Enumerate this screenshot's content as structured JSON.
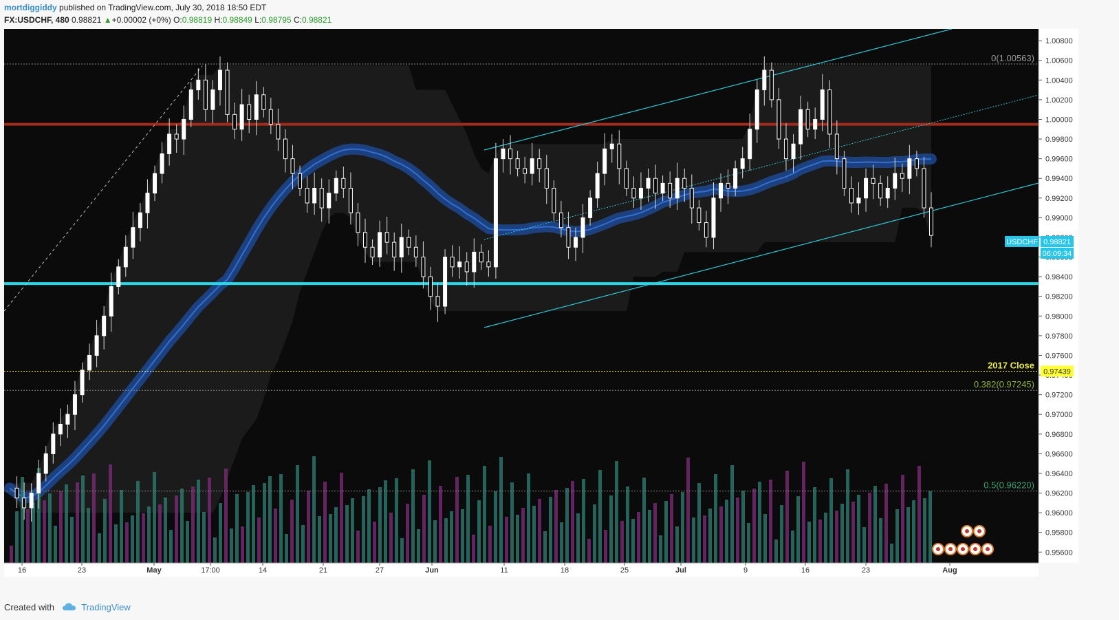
{
  "header": {
    "author": "mortdiggiddy",
    "published": "published on TradingView.com, July 30, 2018 18:50 EDT",
    "symbol": "FX:USDCHF, 480",
    "last": "0.98821",
    "change_arrow": "▲",
    "change": "+0.00002 (+0%)",
    "o_label": "O:",
    "o_value": "0.98819",
    "h_label": "H:",
    "h_value": "0.98849",
    "l_label": "L:",
    "l_value": "0.98795",
    "c_label": "C:",
    "c_value": "0.98821"
  },
  "footer": {
    "created_with": "Created with",
    "brand": "TradingView",
    "icon": "tradingview-cloud-icon"
  },
  "colors": {
    "background": "#0b0b0b",
    "candle_up": "#ffffff",
    "candle_down": "#ffffff",
    "resistance": "#a52a1a",
    "support": "#27d8e8",
    "channel": "#2ec7d6",
    "band": "#1d4fa0",
    "cloud": "#2a2a2a",
    "volume_a": "#2a7a6e",
    "volume_b": "#7a2a78",
    "close_line": "#e8e84a",
    "fib_0382": "#8db33a",
    "fib_05": "#3aa06a"
  },
  "chart_data": {
    "type": "candlestick",
    "symbol": "USDCHF",
    "interval": "480",
    "x_ticks": [
      "16",
      "23",
      "May",
      "17:00",
      "14",
      "21",
      "27",
      "Jun",
      "11",
      "18",
      "25",
      "Jul",
      "9",
      "16",
      "23",
      "Aug"
    ],
    "y_ticks": [
      "1.00800",
      "1.00600",
      "1.00400",
      "1.00200",
      "1.00000",
      "0.99800",
      "0.99600",
      "0.99400",
      "0.99200",
      "0.99000",
      "0.98800",
      "0.98600",
      "0.98400",
      "0.98200",
      "0.98000",
      "0.97800",
      "0.97600",
      "0.97400",
      "0.97200",
      "0.97000",
      "0.96800",
      "0.96600",
      "0.96400",
      "0.96200",
      "0.96000",
      "0.95800",
      "0.95600"
    ],
    "ylim": [
      0.9549,
      1.0092
    ],
    "price_label": "USDCHF",
    "price_value": "0.98821",
    "countdown": "06:09:34",
    "levels": [
      {
        "name": "fib-0",
        "label": "0(1.00563)",
        "value": 1.00563
      },
      {
        "name": "resistance",
        "label": "",
        "value": 0.9995
      },
      {
        "name": "support",
        "label": "",
        "value": 0.9833
      },
      {
        "name": "2017-close",
        "label": "2017 Close",
        "value": 0.97439,
        "badge": "0.97439"
      },
      {
        "name": "fib-0382",
        "label": "0.382(0.97245)",
        "value": 0.97245
      },
      {
        "name": "fib-05",
        "label": "0.5(0.96220)",
        "value": 0.9622
      }
    ],
    "ohlc_close_path": [
      [
        0,
        0.9625
      ],
      [
        1,
        0.9615
      ],
      [
        2,
        0.9605
      ],
      [
        3,
        0.962
      ],
      [
        4,
        0.964
      ],
      [
        5,
        0.966
      ],
      [
        6,
        0.968
      ],
      [
        7,
        0.969
      ],
      [
        8,
        0.97
      ],
      [
        9,
        0.972
      ],
      [
        10,
        0.9745
      ],
      [
        11,
        0.976
      ],
      [
        12,
        0.978
      ],
      [
        13,
        0.98
      ],
      [
        14,
        0.983
      ],
      [
        15,
        0.985
      ],
      [
        16,
        0.987
      ],
      [
        17,
        0.989
      ],
      [
        18,
        0.9905
      ],
      [
        19,
        0.9925
      ],
      [
        20,
        0.9945
      ],
      [
        21,
        0.9965
      ],
      [
        22,
        0.9985
      ],
      [
        23,
        0.998
      ],
      [
        24,
        1.0
      ],
      [
        25,
        1.003
      ],
      [
        26,
        1.004
      ],
      [
        27,
        1.001
      ],
      [
        28,
        1.003
      ],
      [
        29,
        1.005
      ],
      [
        30,
        1.0005
      ],
      [
        31,
        0.999
      ],
      [
        32,
        1.0015
      ],
      [
        33,
        1.0
      ],
      [
        34,
        1.0025
      ],
      [
        35,
        1.001
      ],
      [
        36,
        0.9995
      ],
      [
        37,
        0.998
      ],
      [
        38,
        0.996
      ],
      [
        39,
        0.9945
      ],
      [
        40,
        0.993
      ],
      [
        41,
        0.9915
      ],
      [
        42,
        0.993
      ],
      [
        43,
        0.991
      ],
      [
        44,
        0.9925
      ],
      [
        45,
        0.994
      ],
      [
        46,
        0.993
      ],
      [
        47,
        0.9905
      ],
      [
        48,
        0.9885
      ],
      [
        49,
        0.987
      ],
      [
        50,
        0.986
      ],
      [
        51,
        0.9885
      ],
      [
        52,
        0.9875
      ],
      [
        53,
        0.986
      ],
      [
        54,
        0.988
      ],
      [
        55,
        0.987
      ],
      [
        56,
        0.986
      ],
      [
        57,
        0.984
      ],
      [
        58,
        0.982
      ],
      [
        59,
        0.981
      ],
      [
        60,
        0.986
      ],
      [
        61,
        0.985
      ],
      [
        62,
        0.9855
      ],
      [
        63,
        0.9845
      ],
      [
        64,
        0.9865
      ],
      [
        65,
        0.9855
      ],
      [
        66,
        0.985
      ],
      [
        67,
        0.996
      ],
      [
        68,
        0.997
      ],
      [
        69,
        0.996
      ],
      [
        70,
        0.995
      ],
      [
        71,
        0.9945
      ],
      [
        72,
        0.996
      ],
      [
        73,
        0.995
      ],
      [
        74,
        0.993
      ],
      [
        75,
        0.9905
      ],
      [
        76,
        0.989
      ],
      [
        77,
        0.987
      ],
      [
        78,
        0.988
      ],
      [
        79,
        0.99
      ],
      [
        80,
        0.992
      ],
      [
        81,
        0.9945
      ],
      [
        82,
        0.997
      ],
      [
        83,
        0.9975
      ],
      [
        84,
        0.995
      ],
      [
        85,
        0.993
      ],
      [
        86,
        0.992
      ],
      [
        87,
        0.993
      ],
      [
        88,
        0.994
      ],
      [
        89,
        0.9925
      ],
      [
        90,
        0.9935
      ],
      [
        91,
        0.992
      ],
      [
        92,
        0.994
      ],
      [
        93,
        0.993
      ],
      [
        94,
        0.991
      ],
      [
        95,
        0.9895
      ],
      [
        96,
        0.988
      ],
      [
        97,
        0.992
      ],
      [
        98,
        0.9935
      ],
      [
        99,
        0.993
      ],
      [
        100,
        0.995
      ],
      [
        101,
        0.996
      ],
      [
        102,
        0.999
      ],
      [
        103,
        1.003
      ],
      [
        104,
        1.005
      ],
      [
        105,
        1.002
      ],
      [
        106,
        0.998
      ],
      [
        107,
        0.996
      ],
      [
        108,
        0.9975
      ],
      [
        109,
        1.001
      ],
      [
        110,
        0.999
      ],
      [
        111,
        1.0
      ],
      [
        112,
        1.003
      ],
      [
        113,
        0.9985
      ],
      [
        114,
        0.996
      ],
      [
        115,
        0.993
      ],
      [
        116,
        0.9915
      ],
      [
        117,
        0.992
      ],
      [
        118,
        0.994
      ],
      [
        119,
        0.9935
      ],
      [
        120,
        0.992
      ],
      [
        121,
        0.993
      ],
      [
        122,
        0.9945
      ],
      [
        123,
        0.994
      ],
      [
        124,
        0.996
      ],
      [
        125,
        0.995
      ],
      [
        126,
        0.991
      ],
      [
        127,
        0.9882
      ]
    ]
  }
}
